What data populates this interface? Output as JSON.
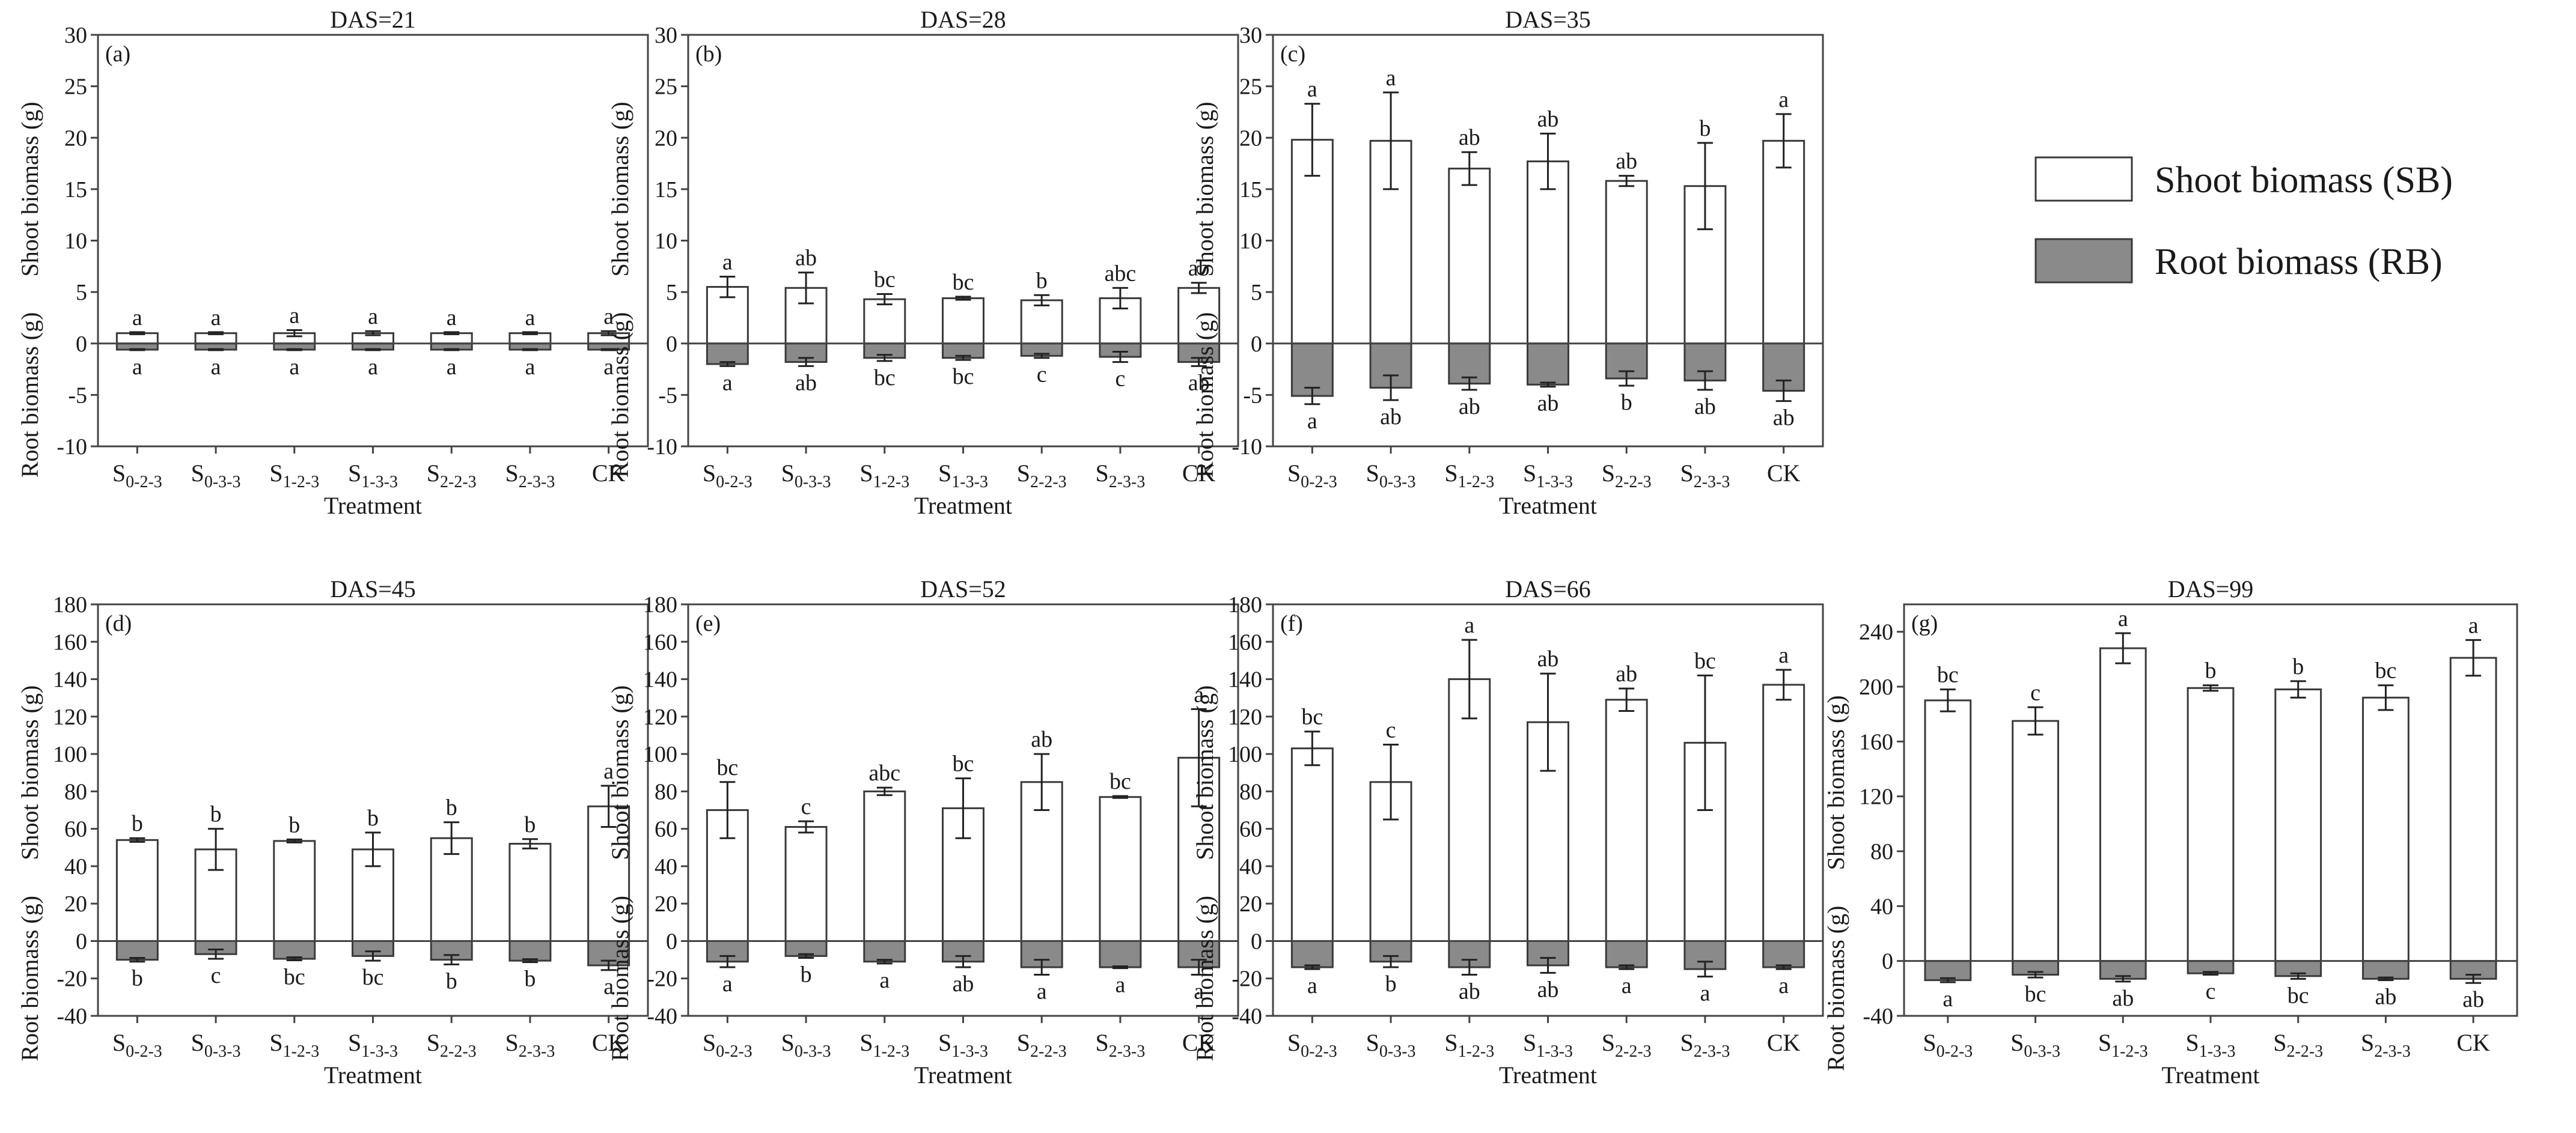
{
  "legend": {
    "items": [
      {
        "label": "Shoot biomass (SB)",
        "color": "#ffffff"
      },
      {
        "label": "Root biomass (RB)",
        "color": "#8a8a8a"
      }
    ]
  },
  "chart_data": [
    {
      "type": "bar",
      "panel_label": "(a)",
      "title": "DAS=21",
      "categories": [
        [
          "S",
          "0-2-3"
        ],
        [
          "S",
          "0-3-3"
        ],
        [
          "S",
          "1-2-3"
        ],
        [
          "S",
          "1-3-3"
        ],
        [
          "S",
          "2-2-3"
        ],
        [
          "S",
          "2-3-3"
        ],
        [
          "CK",
          ""
        ]
      ],
      "xlabel": "Treatment",
      "ylabel_shoot": "Shoot biomass (g)",
      "ylabel_root": "Root biomass (g)",
      "ylim": [
        -10,
        30
      ],
      "yticks": [
        -10,
        -5,
        0,
        5,
        10,
        15,
        20,
        25,
        30
      ],
      "series": [
        {
          "name": "Shoot biomass (SB)",
          "values": [
            1.0,
            1.0,
            1.0,
            1.0,
            1.0,
            1.0,
            1.0
          ],
          "errors": [
            0.1,
            0.1,
            0.3,
            0.2,
            0.1,
            0.1,
            0.2
          ],
          "letters": [
            "a",
            "a",
            "a",
            "a",
            "a",
            "a",
            "a"
          ]
        },
        {
          "name": "Root biomass (RB)",
          "values": [
            -0.6,
            -0.6,
            -0.6,
            -0.6,
            -0.6,
            -0.6,
            -0.6
          ],
          "errors": [
            0.05,
            0.05,
            0.05,
            0.05,
            0.05,
            0.05,
            0.05
          ],
          "letters": [
            "a",
            "a",
            "a",
            "a",
            "a",
            "a",
            "a"
          ]
        }
      ]
    },
    {
      "type": "bar",
      "panel_label": "(b)",
      "title": "DAS=28",
      "categories": [
        [
          "S",
          "0-2-3"
        ],
        [
          "S",
          "0-3-3"
        ],
        [
          "S",
          "1-2-3"
        ],
        [
          "S",
          "1-3-3"
        ],
        [
          "S",
          "2-2-3"
        ],
        [
          "S",
          "2-3-3"
        ],
        [
          "CK",
          ""
        ]
      ],
      "xlabel": "Treatment",
      "ylabel_shoot": "Shoot biomass (g)",
      "ylabel_root": "Root biomass (g)",
      "ylim": [
        -10,
        30
      ],
      "yticks": [
        -10,
        -5,
        0,
        5,
        10,
        15,
        20,
        25,
        30
      ],
      "series": [
        {
          "name": "Shoot biomass (SB)",
          "values": [
            5.5,
            5.4,
            4.3,
            4.4,
            4.2,
            4.4,
            5.4
          ],
          "errors": [
            1.0,
            1.5,
            0.5,
            0.15,
            0.5,
            1.0,
            0.5
          ],
          "letters": [
            "a",
            "ab",
            "bc",
            "bc",
            "b",
            "abc",
            "ab"
          ]
        },
        {
          "name": "Root biomass (RB)",
          "values": [
            -2.0,
            -1.8,
            -1.4,
            -1.4,
            -1.2,
            -1.3,
            -1.8
          ],
          "errors": [
            0.2,
            0.4,
            0.3,
            0.2,
            0.2,
            0.5,
            0.4
          ],
          "letters": [
            "a",
            "ab",
            "bc",
            "bc",
            "c",
            "c",
            "ab"
          ]
        }
      ]
    },
    {
      "type": "bar",
      "panel_label": "(c)",
      "title": "DAS=35",
      "categories": [
        [
          "S",
          "0-2-3"
        ],
        [
          "S",
          "0-3-3"
        ],
        [
          "S",
          "1-2-3"
        ],
        [
          "S",
          "1-3-3"
        ],
        [
          "S",
          "2-2-3"
        ],
        [
          "S",
          "2-3-3"
        ],
        [
          "CK",
          ""
        ]
      ],
      "xlabel": "Treatment",
      "ylabel_shoot": "Shoot biomass (g)",
      "ylabel_root": "Root biomass (g)",
      "ylim": [
        -10,
        30
      ],
      "yticks": [
        -10,
        -5,
        0,
        5,
        10,
        15,
        20,
        25,
        30
      ],
      "series": [
        {
          "name": "Shoot biomass (SB)",
          "values": [
            19.8,
            19.7,
            17.0,
            17.7,
            15.8,
            15.3,
            19.7
          ],
          "errors": [
            3.5,
            4.7,
            1.6,
            2.7,
            0.5,
            4.2,
            2.6
          ],
          "letters": [
            "a",
            "a",
            "ab",
            "ab",
            "ab",
            "b",
            "a"
          ]
        },
        {
          "name": "Root biomass (RB)",
          "values": [
            -5.1,
            -4.3,
            -3.9,
            -4.0,
            -3.4,
            -3.6,
            -4.6
          ],
          "errors": [
            0.8,
            1.2,
            0.6,
            0.2,
            0.7,
            0.9,
            1.0
          ],
          "letters": [
            "a",
            "ab",
            "ab",
            "ab",
            "b",
            "ab",
            "ab"
          ]
        }
      ]
    },
    {
      "type": "bar",
      "panel_label": "(d)",
      "title": "DAS=45",
      "categories": [
        [
          "S",
          "0-2-3"
        ],
        [
          "S",
          "0-3-3"
        ],
        [
          "S",
          "1-2-3"
        ],
        [
          "S",
          "1-3-3"
        ],
        [
          "S",
          "2-2-3"
        ],
        [
          "S",
          "2-3-3"
        ],
        [
          "CK",
          ""
        ]
      ],
      "xlabel": "Treatment",
      "ylabel_shoot": "Shoot biomass (g)",
      "ylabel_root": "Root biomass (g)",
      "ylim": [
        -40,
        180
      ],
      "yticks": [
        -40,
        -20,
        0,
        20,
        40,
        60,
        80,
        100,
        120,
        140,
        160,
        180
      ],
      "series": [
        {
          "name": "Shoot biomass (SB)",
          "values": [
            54,
            49,
            53.5,
            49,
            55,
            52,
            72
          ],
          "errors": [
            1.0,
            11,
            0.8,
            9,
            8.5,
            2.5,
            11
          ],
          "letters": [
            "b",
            "b",
            "b",
            "b",
            "b",
            "b",
            "a"
          ]
        },
        {
          "name": "Root biomass (RB)",
          "values": [
            -10,
            -7,
            -9.5,
            -8,
            -10,
            -10.5,
            -13
          ],
          "errors": [
            1.0,
            2.5,
            0.8,
            2.5,
            2.5,
            0.8,
            2.5
          ],
          "letters": [
            "b",
            "c",
            "bc",
            "bc",
            "b",
            "b",
            "a"
          ]
        }
      ]
    },
    {
      "type": "bar",
      "panel_label": "(e)",
      "title": "DAS=52",
      "categories": [
        [
          "S",
          "0-2-3"
        ],
        [
          "S",
          "0-3-3"
        ],
        [
          "S",
          "1-2-3"
        ],
        [
          "S",
          "1-3-3"
        ],
        [
          "S",
          "2-2-3"
        ],
        [
          "S",
          "2-3-3"
        ],
        [
          "CK",
          ""
        ]
      ],
      "xlabel": "Treatment",
      "ylabel_shoot": "Shoot biomass (g)",
      "ylabel_root": "Root biomass (g)",
      "ylim": [
        -40,
        180
      ],
      "yticks": [
        -40,
        -20,
        0,
        20,
        40,
        60,
        80,
        100,
        120,
        140,
        160,
        180
      ],
      "series": [
        {
          "name": "Shoot biomass (SB)",
          "values": [
            70,
            61,
            80,
            71,
            85,
            77,
            98
          ],
          "errors": [
            15,
            3,
            2,
            16,
            15,
            0.5,
            26
          ],
          "letters": [
            "bc",
            "c",
            "abc",
            "bc",
            "ab",
            "bc",
            "a"
          ]
        },
        {
          "name": "Root biomass (RB)",
          "values": [
            -11,
            -8,
            -11,
            -11,
            -14,
            -14,
            -14
          ],
          "errors": [
            3,
            1,
            1,
            3,
            4,
            0.5,
            4
          ],
          "letters": [
            "a",
            "b",
            "a",
            "ab",
            "a",
            "a",
            "a"
          ]
        }
      ]
    },
    {
      "type": "bar",
      "panel_label": "(f)",
      "title": "DAS=66",
      "categories": [
        [
          "S",
          "0-2-3"
        ],
        [
          "S",
          "0-3-3"
        ],
        [
          "S",
          "1-2-3"
        ],
        [
          "S",
          "1-3-3"
        ],
        [
          "S",
          "2-2-3"
        ],
        [
          "S",
          "2-3-3"
        ],
        [
          "CK",
          ""
        ]
      ],
      "xlabel": "Treatment",
      "ylabel_shoot": "Shoot biomass (g)",
      "ylabel_root": "Root biomass (g)",
      "ylim": [
        -40,
        180
      ],
      "yticks": [
        -40,
        -20,
        0,
        20,
        40,
        60,
        80,
        100,
        120,
        140,
        160,
        180
      ],
      "series": [
        {
          "name": "Shoot biomass (SB)",
          "values": [
            103,
            85,
            140,
            117,
            129,
            106,
            137
          ],
          "errors": [
            9,
            20,
            21,
            26,
            6,
            36,
            8
          ],
          "letters": [
            "bc",
            "c",
            "a",
            "ab",
            "ab",
            "bc",
            "a"
          ]
        },
        {
          "name": "Root biomass (RB)",
          "values": [
            -14,
            -11,
            -14,
            -13,
            -14,
            -15,
            -14
          ],
          "errors": [
            1,
            3,
            4,
            4,
            1,
            4,
            1
          ],
          "letters": [
            "a",
            "b",
            "ab",
            "ab",
            "a",
            "a",
            "a"
          ]
        }
      ]
    },
    {
      "type": "bar",
      "panel_label": "(g)",
      "title": "DAS=99",
      "categories": [
        [
          "S",
          "0-2-3"
        ],
        [
          "S",
          "0-3-3"
        ],
        [
          "S",
          "1-2-3"
        ],
        [
          "S",
          "1-3-3"
        ],
        [
          "S",
          "2-2-3"
        ],
        [
          "S",
          "2-3-3"
        ],
        [
          "CK",
          ""
        ]
      ],
      "xlabel": "Treatment",
      "ylabel_shoot": "Shoot biomass (g)",
      "ylabel_root": "Root biomass (g)",
      "ylim": [
        -40,
        260
      ],
      "yticks": [
        -40,
        0,
        40,
        80,
        120,
        160,
        200,
        240
      ],
      "series": [
        {
          "name": "Shoot biomass (SB)",
          "values": [
            190,
            175,
            228,
            199,
            198,
            192,
            221
          ],
          "errors": [
            8,
            10,
            11,
            2,
            6,
            9,
            13
          ],
          "letters": [
            "bc",
            "c",
            "a",
            "b",
            "b",
            "bc",
            "a"
          ]
        },
        {
          "name": "Root biomass (RB)",
          "values": [
            -14,
            -10,
            -13,
            -9,
            -11,
            -13,
            -13
          ],
          "errors": [
            1.5,
            2,
            2,
            1,
            2,
            1,
            3
          ],
          "letters": [
            "a",
            "bc",
            "ab",
            "c",
            "bc",
            "ab",
            "ab"
          ]
        }
      ]
    }
  ]
}
